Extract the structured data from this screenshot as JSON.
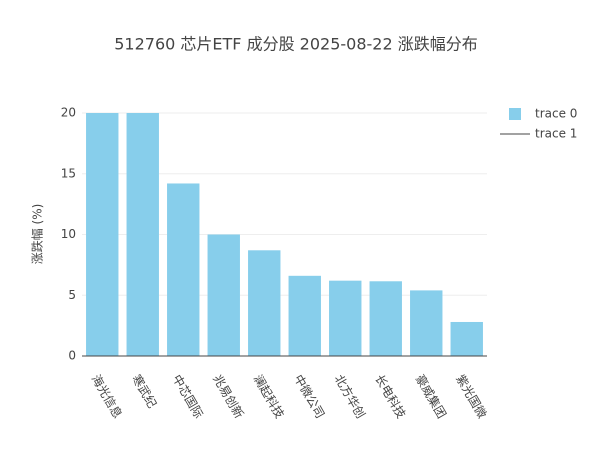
{
  "chart_data": {
    "type": "bar",
    "title": "512760 芯片ETF 成分股 2025-08-22 涨跌幅分布",
    "y_label": "涨跌幅 (%)",
    "categories": [
      "海光信息",
      "寒武纪",
      "中芯国际",
      "兆易创新",
      "澜起科技",
      "中微公司",
      "北方华创",
      "长电科技",
      "豪威集团",
      "紫光国微"
    ],
    "series": [
      {
        "name": "trace 0",
        "type": "bar",
        "color": "#87ceeb",
        "values": [
          20,
          20,
          14.2,
          10,
          8.7,
          6.6,
          6.2,
          6.15,
          5.4,
          2.8
        ]
      },
      {
        "name": "trace 1",
        "type": "line",
        "color": "#444444",
        "values": [
          0,
          0,
          0,
          0,
          0,
          0,
          0,
          0,
          0,
          0
        ]
      }
    ],
    "ylim": [
      0,
      20
    ],
    "yticks": [
      0,
      5,
      10,
      15,
      20
    ],
    "grid": true,
    "legend": "top-right"
  }
}
